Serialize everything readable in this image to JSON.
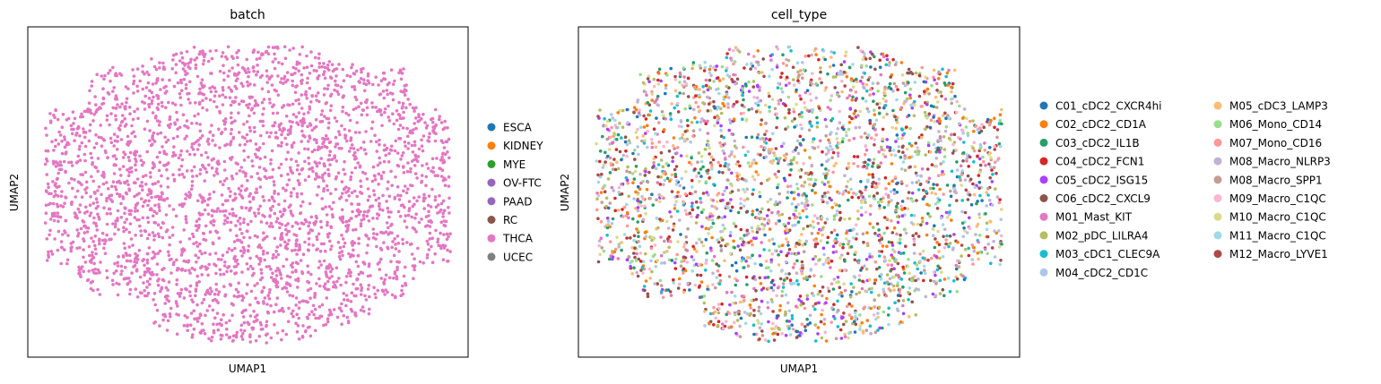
{
  "chart_data": [
    {
      "type": "scatter",
      "title": "batch",
      "xlabel": "UMAP1",
      "ylabel": "UMAP2",
      "grid": false,
      "ticks": false,
      "legend_placement": "right",
      "colored_by": "THCA",
      "point_count": 3000,
      "categories": [
        {
          "name": "ESCA",
          "color": "#1f77b4"
        },
        {
          "name": "KIDNEY",
          "color": "#ff7f0e"
        },
        {
          "name": "MYE",
          "color": "#2ca02c"
        },
        {
          "name": "OV-FTC",
          "color": "#9467bd"
        },
        {
          "name": "PAAD",
          "color": "#9467bd"
        },
        {
          "name": "RC",
          "color": "#8c564b"
        },
        {
          "name": "THCA",
          "color": "#e377c2"
        },
        {
          "name": "UCEC",
          "color": "#7f7f7f"
        }
      ]
    },
    {
      "type": "scatter",
      "title": "cell_type",
      "xlabel": "UMAP1",
      "ylabel": "UMAP2",
      "grid": false,
      "ticks": false,
      "legend_placement": "right",
      "point_count": 3000,
      "categories": [
        {
          "name": "C01_cDC2_CXCR4hi",
          "color": "#1f77b4"
        },
        {
          "name": "C02_cDC2_CD1A",
          "color": "#ff7f0e"
        },
        {
          "name": "C03_cDC2_IL1B",
          "color": "#279e68"
        },
        {
          "name": "C04_cDC2_FCN1",
          "color": "#d62728"
        },
        {
          "name": "C05_cDC2_ISG15",
          "color": "#aa40fc"
        },
        {
          "name": "C06_cDC2_CXCL9",
          "color": "#8c564b"
        },
        {
          "name": "M01_Mast_KIT",
          "color": "#e377c2"
        },
        {
          "name": "M02_pDC_LILRA4",
          "color": "#b5bd61"
        },
        {
          "name": "M03_cDC1_CLEC9A",
          "color": "#17becf"
        },
        {
          "name": "M04_cDC2_CD1C",
          "color": "#aec7e8"
        },
        {
          "name": "M05_cDC3_LAMP3",
          "color": "#ffbb78"
        },
        {
          "name": "M06_Mono_CD14",
          "color": "#98df8a"
        },
        {
          "name": "M07_Mono_CD16",
          "color": "#ff9896"
        },
        {
          "name": "M08_Macro_NLRP3",
          "color": "#c5b0d5"
        },
        {
          "name": "M08_Macro_SPP1",
          "color": "#c49c94"
        },
        {
          "name": "M09_Macro_C1QC",
          "color": "#f7b6d2"
        },
        {
          "name": "M10_Macro_C1QC",
          "color": "#dbdb8d"
        },
        {
          "name": "M11_Macro_C1QC",
          "color": "#9edae5"
        },
        {
          "name": "M12_Macro_LYVE1",
          "color": "#ad494a"
        }
      ]
    }
  ]
}
